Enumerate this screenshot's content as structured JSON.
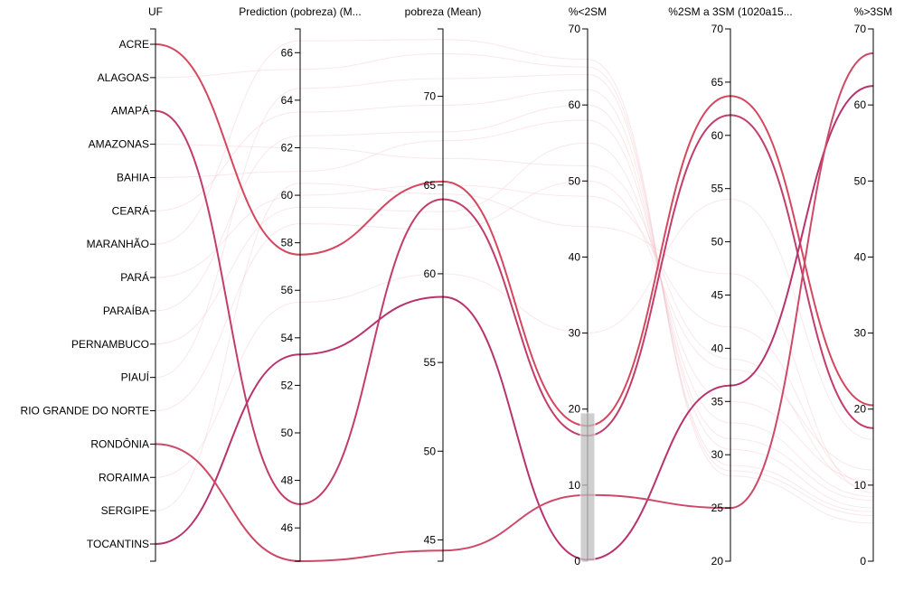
{
  "colors": {
    "highlight": [
      "#d4475f",
      "#c23d6a",
      "#b8336e",
      "#cc4a68",
      "#bd3f6c"
    ],
    "background_line": "#f2b9c6",
    "brush": "#c0c0c0"
  },
  "chart_data": {
    "type": "parallel-coordinates",
    "axes": [
      {
        "key": "uf",
        "title": "UF",
        "kind": "categorical",
        "categories": [
          "ACRE",
          "ALAGOAS",
          "AMAPÁ",
          "AMAZONAS",
          "BAHIA",
          "CEARÁ",
          "MARANHÃO",
          "PARÁ",
          "PARAÍBA",
          "PERNAMBUCO",
          "PIAUÍ",
          "RIO GRANDE DO NORTE",
          "RONDÔNIA",
          "RORAIMA",
          "SERGIPE",
          "TOCANTINS"
        ]
      },
      {
        "key": "pred",
        "title": "Prediction (pobreza) (M...",
        "kind": "numeric",
        "domain": [
          44.6,
          67.0
        ],
        "ticks": [
          46,
          48,
          50,
          52,
          54,
          56,
          58,
          60,
          62,
          64,
          66
        ]
      },
      {
        "key": "pobreza",
        "title": "pobreza (Mean)",
        "kind": "numeric",
        "domain": [
          43.8,
          73.8
        ],
        "ticks": [
          45,
          50,
          55,
          60,
          65,
          70
        ]
      },
      {
        "key": "lt2",
        "title": "%<2SM",
        "kind": "numeric",
        "domain": [
          0,
          70
        ],
        "ticks": [
          0,
          10,
          20,
          30,
          40,
          50,
          60,
          70
        ]
      },
      {
        "key": "mid",
        "title": "%2SM a 3SM (1020a15...",
        "kind": "numeric",
        "domain": [
          20,
          70
        ],
        "ticks": [
          20,
          25,
          30,
          35,
          40,
          45,
          50,
          55,
          60,
          65,
          70
        ]
      },
      {
        "key": "gt3",
        "title": "%>3SM",
        "kind": "numeric",
        "domain": [
          0,
          70
        ],
        "ticks": [
          0,
          10,
          20,
          30,
          40,
          50,
          60,
          70
        ]
      }
    ],
    "brush": {
      "axis": "lt2",
      "range": [
        0,
        19.5
      ]
    },
    "highlighted_series": [
      {
        "uf": "ACRE",
        "pred": 57.5,
        "pobreza": 65.2,
        "lt2": 17.8,
        "mid": 63.7,
        "gt3": 20.5
      },
      {
        "uf": "AMAPÁ",
        "pred": 47.0,
        "pobreza": 64.2,
        "lt2": 16.5,
        "mid": 61.9,
        "gt3": 17.5
      },
      {
        "uf": "TOCANTINS",
        "pred": 53.3,
        "pobreza": 58.7,
        "lt2": 0.2,
        "mid": 36.5,
        "gt3": 62.5
      },
      {
        "uf": "RONDÔNIA",
        "pred": 44.6,
        "pobreza": 44.4,
        "lt2": 8.7,
        "mid": 25.0,
        "gt3": 66.8
      }
    ],
    "background_series": [
      {
        "uf": "ALAGOAS",
        "pred": 65.3,
        "pobreza": 72.4,
        "lt2": 65.0,
        "mid": 28.5,
        "gt3": 6.0
      },
      {
        "uf": "AMAZONAS",
        "pred": 62.0,
        "pobreza": 66.5,
        "lt2": 52.0,
        "mid": 39.0,
        "gt3": 9.5
      },
      {
        "uf": "BAHIA",
        "pred": 61.0,
        "pobreza": 67.5,
        "lt2": 58.0,
        "mid": 33.0,
        "gt3": 8.5
      },
      {
        "uf": "CEARÁ",
        "pred": 63.5,
        "pobreza": 69.5,
        "lt2": 62.0,
        "mid": 30.5,
        "gt3": 7.0
      },
      {
        "uf": "MARANHÃO",
        "pred": 66.5,
        "pobreza": 73.2,
        "lt2": 66.0,
        "mid": 28.0,
        "gt3": 5.0
      },
      {
        "uf": "PARÁ",
        "pred": 60.0,
        "pobreza": 65.0,
        "lt2": 48.0,
        "mid": 42.0,
        "gt3": 10.0
      },
      {
        "uf": "PARAÍBA",
        "pred": 62.5,
        "pobreza": 68.0,
        "lt2": 60.0,
        "mid": 31.5,
        "gt3": 8.0
      },
      {
        "uf": "PERNAMBUCO",
        "pred": 59.5,
        "pobreza": 63.5,
        "lt2": 55.0,
        "mid": 35.0,
        "gt3": 10.5
      },
      {
        "uf": "PIAUÍ",
        "pred": 64.5,
        "pobreza": 71.0,
        "lt2": 64.0,
        "mid": 29.0,
        "gt3": 6.5
      },
      {
        "uf": "RIO GRANDE DO NORTE",
        "pred": 58.8,
        "pobreza": 62.5,
        "lt2": 50.0,
        "mid": 38.0,
        "gt3": 12.0
      },
      {
        "uf": "RORAIMA",
        "pred": 55.5,
        "pobreza": 60.0,
        "lt2": 30.0,
        "mid": 54.0,
        "gt3": 16.0
      },
      {
        "uf": "SERGIPE",
        "pred": 60.5,
        "pobreza": 64.5,
        "lt2": 44.0,
        "mid": 47.0,
        "gt3": 9.0
      }
    ]
  }
}
